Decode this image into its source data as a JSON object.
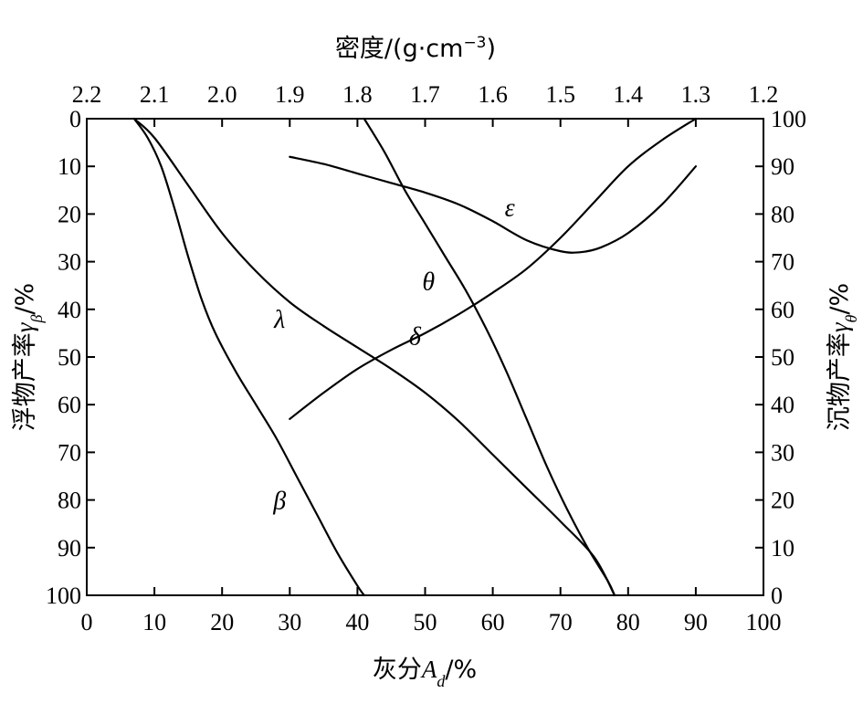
{
  "chart_data": {
    "type": "line",
    "title": "",
    "grid": false,
    "axes": {
      "bottom": {
        "label": "灰分A_d/%",
        "label_parts": {
          "pre": "灰分",
          "var": "A",
          "sub": "d",
          "post": "/%"
        },
        "range": [
          0,
          100
        ],
        "ticks": [
          "0",
          "10",
          "20",
          "30",
          "40",
          "50",
          "60",
          "70",
          "80",
          "90",
          "100"
        ]
      },
      "top": {
        "label": "密度/(g·cm⁻³)",
        "label_parts": {
          "pre": "密度/(g·cm",
          "sup": "−3",
          "post": ")"
        },
        "range": [
          2.2,
          1.2
        ],
        "ticks": [
          "2.2",
          "2.1",
          "2.0",
          "1.9",
          "1.8",
          "1.7",
          "1.6",
          "1.5",
          "1.4",
          "1.3",
          "1.2"
        ]
      },
      "left": {
        "label": "浮物产率γ_β/%",
        "label_parts": {
          "pre": "浮物产率",
          "var": "γ",
          "sub": "β",
          "post": "/%"
        },
        "range": [
          0,
          100
        ],
        "inverted": true,
        "ticks": [
          "0",
          "10",
          "20",
          "30",
          "40",
          "50",
          "60",
          "70",
          "80",
          "90",
          "100"
        ]
      },
      "right": {
        "label": "沉物产率γ_θ/%",
        "label_parts": {
          "pre": "沉物产率",
          "var": "γ",
          "sub": "θ",
          "post": "/%"
        },
        "range": [
          0,
          100
        ],
        "ticks": [
          "100",
          "90",
          "80",
          "70",
          "60",
          "50",
          "40",
          "30",
          "20",
          "10",
          "0"
        ]
      }
    },
    "series": [
      {
        "name": "λ",
        "x": [
          7,
          10,
          15,
          20,
          25,
          30,
          35,
          40,
          45,
          50,
          55,
          60,
          65,
          70,
          75,
          78
        ],
        "y": [
          0,
          4,
          14,
          24,
          32,
          38.5,
          43.5,
          48,
          52.5,
          57.5,
          63.5,
          70.5,
          77.5,
          84.5,
          92,
          100
        ]
      },
      {
        "name": "β",
        "x": [
          7,
          9,
          11,
          13,
          15,
          17,
          19,
          22,
          25,
          28,
          31,
          34,
          37,
          40,
          41
        ],
        "y": [
          0,
          4,
          10,
          19,
          29,
          38,
          45,
          53,
          60,
          67,
          75,
          83,
          91,
          98,
          100
        ]
      },
      {
        "name": "θ",
        "x": [
          41,
          44,
          47,
          50,
          53,
          56,
          59,
          62,
          65,
          68,
          71,
          74,
          77,
          78
        ],
        "y": [
          0,
          7,
          15,
          22,
          29,
          36,
          44,
          53,
          63,
          73,
          82,
          90,
          97,
          100
        ]
      },
      {
        "name": "δ",
        "x": [
          30,
          35,
          40,
          45,
          50,
          55,
          60,
          65,
          70,
          75,
          80,
          85,
          90
        ],
        "y": [
          63,
          57.5,
          52.5,
          48.5,
          45,
          41,
          36.5,
          31.5,
          25,
          17.5,
          10,
          4.5,
          0
        ]
      },
      {
        "name": "ε",
        "x": [
          30,
          35,
          40,
          45,
          50,
          55,
          60,
          65,
          70,
          73,
          76,
          80,
          85,
          90
        ],
        "y": [
          8,
          9.5,
          11.5,
          13.5,
          15.5,
          18,
          21.5,
          25.5,
          27.8,
          28,
          27,
          24,
          18,
          10
        ]
      }
    ],
    "curve_labels": [
      {
        "text": "ε",
        "x": 62.5,
        "y": 18.5
      },
      {
        "text": "θ",
        "x": 50.5,
        "y": 34
      },
      {
        "text": "λ",
        "x": 28.5,
        "y": 42
      },
      {
        "text": "δ",
        "x": 48.5,
        "y": 45.5
      },
      {
        "text": "β",
        "x": 28.5,
        "y": 80
      }
    ]
  }
}
